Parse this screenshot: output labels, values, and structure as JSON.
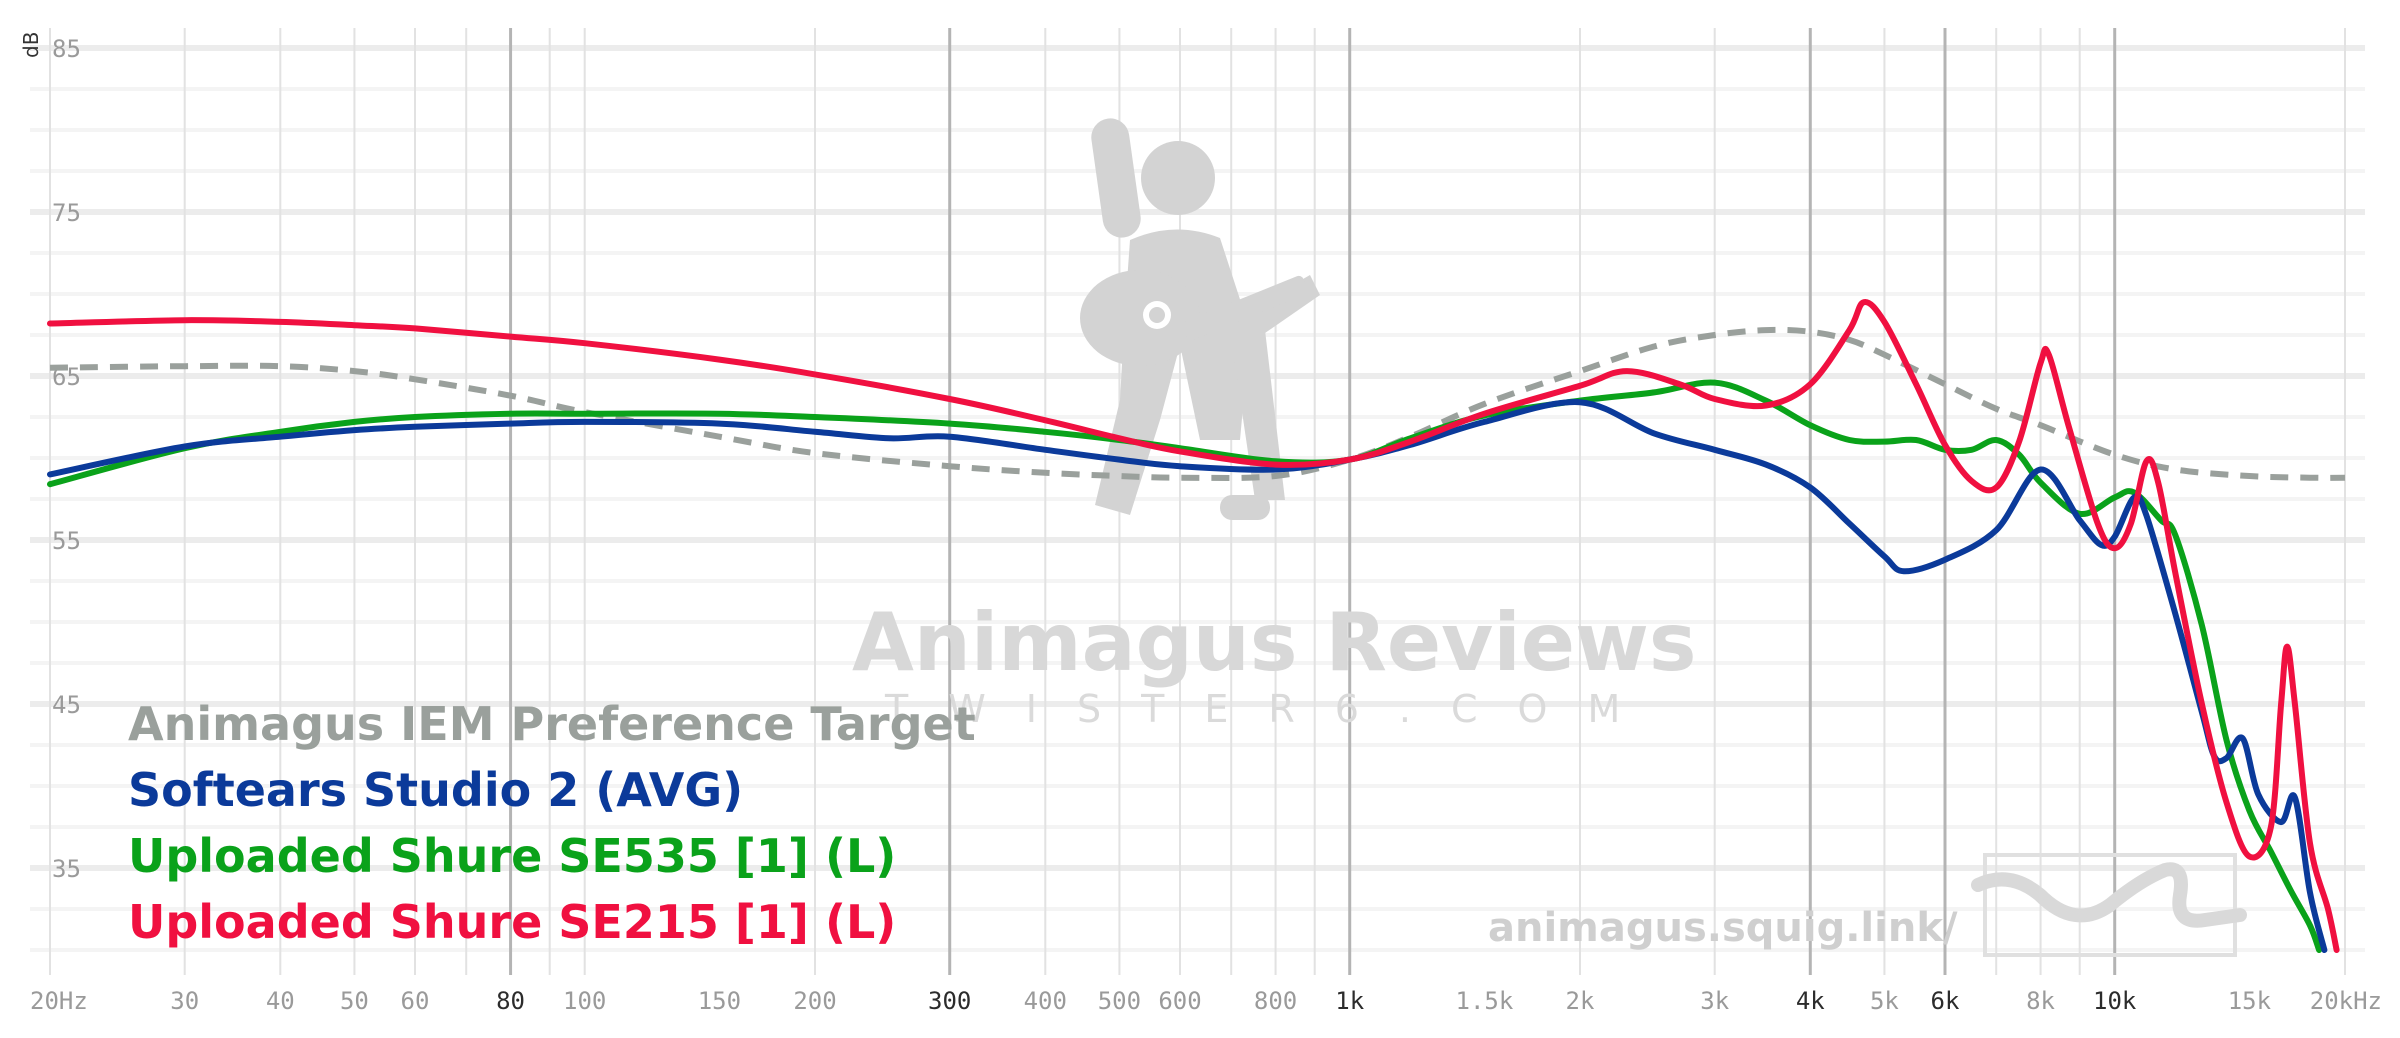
{
  "chart_data": {
    "type": "line",
    "x_scale": "log",
    "xlim": [
      20,
      20000
    ],
    "ylim": [
      30,
      87
    ],
    "ylabel": "dB",
    "y_ticks": [
      85,
      75,
      65,
      55,
      45,
      35
    ],
    "x_ticks": [
      {
        "value": 20,
        "label": "20Hz",
        "major": false
      },
      {
        "value": 30,
        "label": "30",
        "major": false
      },
      {
        "value": 40,
        "label": "40",
        "major": false
      },
      {
        "value": 50,
        "label": "50",
        "major": false
      },
      {
        "value": 60,
        "label": "60",
        "major": false
      },
      {
        "value": 80,
        "label": "80",
        "major": true
      },
      {
        "value": 100,
        "label": "100",
        "major": false
      },
      {
        "value": 150,
        "label": "150",
        "major": false
      },
      {
        "value": 200,
        "label": "200",
        "major": false
      },
      {
        "value": 300,
        "label": "300",
        "major": true
      },
      {
        "value": 400,
        "label": "400",
        "major": false
      },
      {
        "value": 500,
        "label": "500",
        "major": false
      },
      {
        "value": 600,
        "label": "600",
        "major": false
      },
      {
        "value": 800,
        "label": "800",
        "major": false
      },
      {
        "value": 1000,
        "label": "1k",
        "major": true
      },
      {
        "value": 1500,
        "label": "1.5k",
        "major": false
      },
      {
        "value": 2000,
        "label": "2k",
        "major": false
      },
      {
        "value": 3000,
        "label": "3k",
        "major": false
      },
      {
        "value": 4000,
        "label": "4k",
        "major": true
      },
      {
        "value": 5000,
        "label": "5k",
        "major": false
      },
      {
        "value": 6000,
        "label": "6k",
        "major": true
      },
      {
        "value": 8000,
        "label": "8k",
        "major": false
      },
      {
        "value": 10000,
        "label": "10k",
        "major": true
      },
      {
        "value": 15000,
        "label": "15k",
        "major": false
      },
      {
        "value": 20000,
        "label": "20kHz",
        "major": false
      }
    ],
    "series": [
      {
        "name": "Animagus IEM Preference Target",
        "color": "#9aa09c",
        "dashed": true,
        "points": [
          [
            20,
            65.5
          ],
          [
            30,
            65.6
          ],
          [
            40,
            65.6
          ],
          [
            50,
            65.3
          ],
          [
            60,
            64.8
          ],
          [
            80,
            63.8
          ],
          [
            100,
            62.8
          ],
          [
            150,
            61.3
          ],
          [
            200,
            60.3
          ],
          [
            300,
            59.5
          ],
          [
            400,
            59.1
          ],
          [
            500,
            58.9
          ],
          [
            600,
            58.8
          ],
          [
            800,
            58.9
          ],
          [
            1000,
            59.9
          ],
          [
            1200,
            61.3
          ],
          [
            1500,
            63.3
          ],
          [
            2000,
            65.3
          ],
          [
            2500,
            66.8
          ],
          [
            3000,
            67.5
          ],
          [
            3500,
            67.8
          ],
          [
            4000,
            67.7
          ],
          [
            4500,
            67.2
          ],
          [
            5000,
            66.3
          ],
          [
            6000,
            64.5
          ],
          [
            7000,
            63.0
          ],
          [
            8000,
            62.0
          ],
          [
            10000,
            60.2
          ],
          [
            12000,
            59.3
          ],
          [
            15000,
            58.9
          ],
          [
            18000,
            58.8
          ],
          [
            20000,
            58.8
          ]
        ]
      },
      {
        "name": "Softears Studio 2 (AVG)",
        "color": "#0b3a9a",
        "dashed": false,
        "points": [
          [
            20,
            59.0
          ],
          [
            30,
            60.7
          ],
          [
            40,
            61.3
          ],
          [
            50,
            61.7
          ],
          [
            60,
            61.9
          ],
          [
            80,
            62.1
          ],
          [
            100,
            62.2
          ],
          [
            150,
            62.1
          ],
          [
            200,
            61.6
          ],
          [
            250,
            61.2
          ],
          [
            300,
            61.3
          ],
          [
            400,
            60.5
          ],
          [
            500,
            59.9
          ],
          [
            600,
            59.5
          ],
          [
            800,
            59.3
          ],
          [
            1000,
            59.9
          ],
          [
            1200,
            60.8
          ],
          [
            1500,
            62.2
          ],
          [
            2000,
            63.4
          ],
          [
            2500,
            61.5
          ],
          [
            3000,
            60.5
          ],
          [
            3500,
            59.6
          ],
          [
            4000,
            58.2
          ],
          [
            4500,
            56.0
          ],
          [
            5000,
            54.0
          ],
          [
            5300,
            53.1
          ],
          [
            6000,
            53.8
          ],
          [
            7000,
            55.6
          ],
          [
            8000,
            59.3
          ],
          [
            9000,
            56.2
          ],
          [
            9600,
            54.7
          ],
          [
            10000,
            55.2
          ],
          [
            10600,
            57.6
          ],
          [
            11000,
            56.5
          ],
          [
            12000,
            50.5
          ],
          [
            13000,
            44.5
          ],
          [
            13500,
            41.8
          ],
          [
            14000,
            41.7
          ],
          [
            14700,
            42.9
          ],
          [
            15400,
            39.5
          ],
          [
            16500,
            37.8
          ],
          [
            17200,
            39.3
          ],
          [
            18000,
            33.5
          ],
          [
            18800,
            30.0
          ]
        ]
      },
      {
        "name": "Uploaded Shure SE535 [1] (L)",
        "color": "#0aa21a",
        "dashed": false,
        "points": [
          [
            20,
            58.4
          ],
          [
            30,
            60.6
          ],
          [
            40,
            61.6
          ],
          [
            50,
            62.2
          ],
          [
            60,
            62.5
          ],
          [
            80,
            62.7
          ],
          [
            100,
            62.7
          ],
          [
            150,
            62.7
          ],
          [
            200,
            62.5
          ],
          [
            300,
            62.1
          ],
          [
            400,
            61.6
          ],
          [
            500,
            61.1
          ],
          [
            600,
            60.6
          ],
          [
            800,
            59.8
          ],
          [
            1000,
            59.9
          ],
          [
            1200,
            61.2
          ],
          [
            1500,
            62.6
          ],
          [
            2000,
            63.5
          ],
          [
            2500,
            64.0
          ],
          [
            3000,
            64.6
          ],
          [
            3500,
            63.5
          ],
          [
            4000,
            62.0
          ],
          [
            4500,
            61.1
          ],
          [
            5000,
            61.0
          ],
          [
            5500,
            61.1
          ],
          [
            6000,
            60.5
          ],
          [
            6500,
            60.5
          ],
          [
            7000,
            61.1
          ],
          [
            7500,
            60.2
          ],
          [
            8000,
            58.5
          ],
          [
            9000,
            56.6
          ],
          [
            10000,
            57.6
          ],
          [
            10600,
            57.9
          ],
          [
            11500,
            56.2
          ],
          [
            12000,
            55.3
          ],
          [
            13000,
            49.8
          ],
          [
            14000,
            42.8
          ],
          [
            15000,
            38.5
          ],
          [
            16000,
            36.0
          ],
          [
            17000,
            33.6
          ],
          [
            18000,
            31.5
          ],
          [
            18500,
            30.0
          ]
        ]
      },
      {
        "name": "Uploaded Shure SE215 [1] (L)",
        "color": "#f01040",
        "dashed": false,
        "points": [
          [
            20,
            68.2
          ],
          [
            30,
            68.4
          ],
          [
            40,
            68.3
          ],
          [
            50,
            68.1
          ],
          [
            60,
            67.9
          ],
          [
            80,
            67.4
          ],
          [
            100,
            67.0
          ],
          [
            150,
            66.0
          ],
          [
            200,
            65.1
          ],
          [
            300,
            63.6
          ],
          [
            400,
            62.3
          ],
          [
            500,
            61.2
          ],
          [
            600,
            60.4
          ],
          [
            800,
            59.6
          ],
          [
            1000,
            59.9
          ],
          [
            1200,
            61.0
          ],
          [
            1500,
            62.7
          ],
          [
            2000,
            64.4
          ],
          [
            2300,
            65.3
          ],
          [
            2700,
            64.5
          ],
          [
            3000,
            63.6
          ],
          [
            3500,
            63.2
          ],
          [
            4000,
            64.5
          ],
          [
            4500,
            67.8
          ],
          [
            4700,
            69.5
          ],
          [
            5000,
            68.3
          ],
          [
            5500,
            64.5
          ],
          [
            6000,
            60.8
          ],
          [
            6500,
            58.6
          ],
          [
            7000,
            58.2
          ],
          [
            7500,
            61.0
          ],
          [
            8000,
            65.8
          ],
          [
            8200,
            66.3
          ],
          [
            8700,
            62.0
          ],
          [
            9500,
            56.0
          ],
          [
            10000,
            54.5
          ],
          [
            10500,
            56.0
          ],
          [
            11000,
            59.8
          ],
          [
            11400,
            58.5
          ],
          [
            12000,
            53.0
          ],
          [
            13000,
            45.0
          ],
          [
            14000,
            39.0
          ],
          [
            15000,
            35.7
          ],
          [
            16000,
            37.5
          ],
          [
            16500,
            45.0
          ],
          [
            16800,
            48.5
          ],
          [
            17200,
            45.0
          ],
          [
            18000,
            36.5
          ],
          [
            19000,
            32.5
          ],
          [
            19500,
            30.0
          ]
        ]
      }
    ]
  },
  "watermark": {
    "title": "Animagus Reviews",
    "subtitle": "TWISTER6.COM",
    "url": "animagus.squig.link/",
    "mascot_icon": "guitar-player-icon",
    "sound-wave-icon": "sound-wave-logo-icon"
  }
}
